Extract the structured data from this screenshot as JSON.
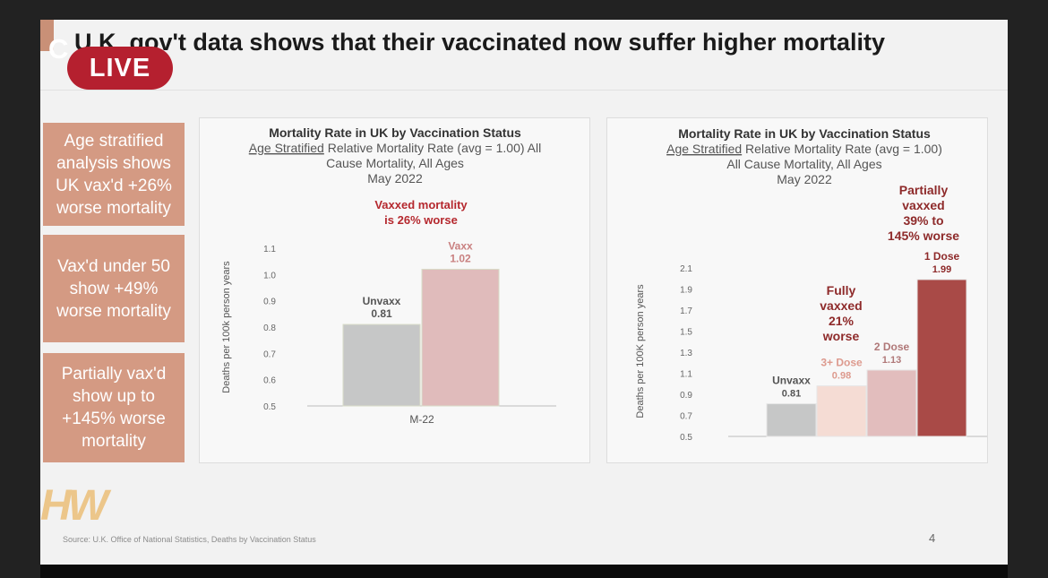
{
  "slide": {
    "title": "U.K. gov't data shows that their vaccinated now suffer higher mortality",
    "source": "Source: U.K. Office of National Statistics, Deaths by Vaccination Status",
    "page_number": "4",
    "logo_text": "HW",
    "accent_color": "#c99077"
  },
  "live": {
    "badge": "LIVE",
    "ghost_text": "C"
  },
  "callouts": [
    {
      "text": "Age stratified analysis shows UK vax'd +26% worse mortality"
    },
    {
      "text": "Vax'd under 50 show +49% worse mortality"
    },
    {
      "text": "Partially vax'd show up to +145% worse mortality"
    }
  ],
  "chart_data": [
    {
      "type": "bar",
      "title": "Mortality Rate in UK by Vaccination Status",
      "subtitle_underlined": "Age Stratified",
      "subtitle_lines": [
        " Relative Mortality Rate (avg = 1.00) All",
        "Cause Mortality, All Ages",
        "May 2022"
      ],
      "ylabel": "Deaths per 100k person years",
      "xlabel": "",
      "x_tick": "M-22",
      "ylim": [
        0.5,
        1.1
      ],
      "yticks": [
        0.5,
        0.6,
        0.7,
        0.8,
        0.9,
        1.0,
        1.1
      ],
      "ytick_labels": [
        "0.5",
        "0.6",
        "0.7",
        "0.8",
        "0.9",
        "1.0",
        "1.1"
      ],
      "annotation": [
        "Vaxxed  mortality",
        "is 26% worse"
      ],
      "grid": false,
      "bars": [
        {
          "label": "Unvaxx",
          "value": 0.81,
          "value_label": "0.81",
          "color": "#c6c7c7",
          "label_color": "#555555"
        },
        {
          "label": "Vaxx",
          "value": 1.02,
          "value_label": "1.02",
          "color": "#e0bbbb",
          "label_color": "#c98080"
        }
      ]
    },
    {
      "type": "bar",
      "title": "Mortality Rate in UK by Vaccination Status",
      "subtitle_underlined": "Age Stratified",
      "subtitle_lines": [
        " Relative Mortality Rate (avg = 1.00)",
        "All Cause Mortality, All Ages",
        "May 2022"
      ],
      "ylabel": "Deaths per 100K person years",
      "xlabel": "",
      "ylim": [
        0.5,
        2.1
      ],
      "yticks": [
        0.5,
        0.7,
        0.9,
        1.1,
        1.3,
        1.5,
        1.7,
        1.9,
        2.1
      ],
      "ytick_labels": [
        "0.5",
        "0.7",
        "0.9",
        "1.1",
        "1.3",
        "1.5",
        "1.7",
        "1.9",
        "2.1"
      ],
      "annotations": [
        {
          "lines": [
            "Fully",
            "vaxxed",
            "21%",
            "worse"
          ]
        },
        {
          "lines": [
            "Partially",
            "vaxxed",
            "39% to",
            "145% worse"
          ]
        }
      ],
      "grid": false,
      "bars": [
        {
          "label": "Unvaxx",
          "value": 0.81,
          "value_label": "0.81",
          "color": "#c6c7c7",
          "label_color": "#555555"
        },
        {
          "label": "3+ Dose",
          "value": 0.98,
          "value_label": "0.98",
          "color": "#f5dcd4",
          "label_color": "#dd9a8e"
        },
        {
          "label": "2 Dose",
          "value": 1.13,
          "value_label": "1.13",
          "color": "#e2bdbd",
          "label_color": "#b07878"
        },
        {
          "label": "1 Dose",
          "value": 1.99,
          "value_label": "1.99",
          "color": "#a94a47",
          "label_color": "#8e2a2a"
        }
      ]
    }
  ]
}
